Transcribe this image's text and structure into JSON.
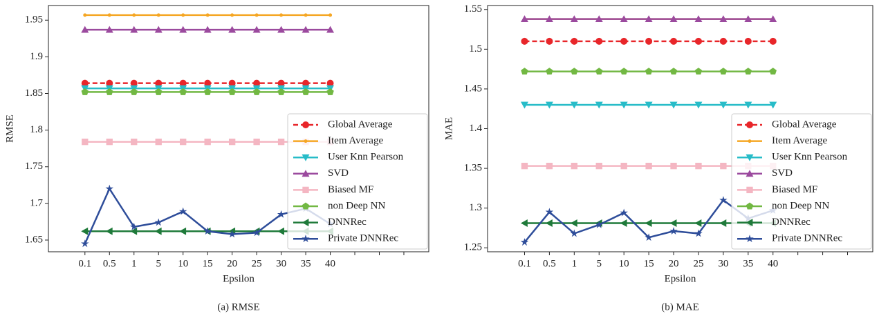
{
  "chart_data": [
    {
      "type": "line",
      "caption": "(a)  RMSE",
      "x_label": "Epsilon",
      "y_label": "RMSE",
      "categories": [
        "0.1",
        "0.5",
        "1",
        "5",
        "10",
        "15",
        "20",
        "25",
        "30",
        "35",
        "40",
        null,
        null,
        null
      ],
      "ylim": [
        1.634,
        1.97
      ],
      "yticks": [
        1.65,
        1.7,
        1.75,
        1.8,
        1.85,
        1.9,
        1.95
      ],
      "legend": "lower right",
      "series": [
        {
          "name": "Global Average",
          "color": "#e8262a",
          "marker": "circle",
          "dashed": true,
          "values": [
            1.864,
            1.864,
            1.864,
            1.864,
            1.864,
            1.864,
            1.864,
            1.864,
            1.864,
            1.864,
            1.864,
            null,
            null,
            null
          ]
        },
        {
          "name": "Item Average",
          "color": "#f5a623",
          "marker": "dot",
          "values": [
            1.957,
            1.957,
            1.957,
            1.957,
            1.957,
            1.957,
            1.957,
            1.957,
            1.957,
            1.957,
            1.957,
            null,
            null,
            null
          ]
        },
        {
          "name": "User Knn Pearson",
          "color": "#27bcc8",
          "marker": "down",
          "values": [
            1.857,
            1.857,
            1.857,
            1.857,
            1.857,
            1.857,
            1.857,
            1.857,
            1.857,
            1.857,
            1.857,
            null,
            null,
            null
          ]
        },
        {
          "name": "SVD",
          "color": "#9b4a9e",
          "marker": "up",
          "values": [
            1.937,
            1.937,
            1.937,
            1.937,
            1.937,
            1.937,
            1.937,
            1.937,
            1.937,
            1.937,
            1.937,
            null,
            null,
            null
          ]
        },
        {
          "name": "Biased MF",
          "color": "#f4b6c2",
          "marker": "square",
          "values": [
            1.784,
            1.784,
            1.784,
            1.784,
            1.784,
            1.784,
            1.784,
            1.784,
            1.784,
            1.784,
            1.784,
            null,
            null,
            null
          ]
        },
        {
          "name": "non Deep NN",
          "color": "#72b843",
          "marker": "pentagon",
          "values": [
            1.852,
            1.852,
            1.852,
            1.852,
            1.852,
            1.852,
            1.852,
            1.852,
            1.852,
            1.852,
            1.852,
            null,
            null,
            null
          ]
        },
        {
          "name": "DNNRec",
          "color": "#1f7a3a",
          "marker": "left",
          "values": [
            1.662,
            1.662,
            1.662,
            1.662,
            1.662,
            1.662,
            1.662,
            1.662,
            1.662,
            1.662,
            1.662,
            null,
            null,
            null
          ]
        },
        {
          "name": "Private DNNRec",
          "color": "#2e4d9a",
          "marker": "star",
          "values": [
            1.645,
            1.72,
            1.668,
            1.674,
            1.689,
            1.662,
            1.658,
            1.66,
            1.685,
            1.693,
            1.672,
            null,
            null,
            null
          ]
        }
      ]
    },
    {
      "type": "line",
      "caption": "(b)  MAE",
      "x_label": "Epsilon",
      "y_label": "MAE",
      "categories": [
        "0.1",
        "0.5",
        "1",
        "5",
        "10",
        "15",
        "20",
        "25",
        "30",
        "35",
        "40",
        null,
        null,
        null
      ],
      "ylim": [
        1.245,
        1.555
      ],
      "yticks": [
        1.25,
        1.3,
        1.35,
        1.4,
        1.45,
        1.5,
        1.55
      ],
      "legend": "lower right",
      "series": [
        {
          "name": "Global Average",
          "color": "#e8262a",
          "marker": "circle",
          "dashed": true,
          "values": [
            1.51,
            1.51,
            1.51,
            1.51,
            1.51,
            1.51,
            1.51,
            1.51,
            1.51,
            1.51,
            1.51,
            null,
            null,
            null
          ]
        },
        {
          "name": "Item Average",
          "color": "#f5a623",
          "marker": "dot",
          "values": [
            1.538,
            1.538,
            1.538,
            1.538,
            1.538,
            1.538,
            1.538,
            1.538,
            1.538,
            1.538,
            1.538,
            null,
            null,
            null
          ]
        },
        {
          "name": "User Knn Pearson",
          "color": "#27bcc8",
          "marker": "down",
          "values": [
            1.43,
            1.43,
            1.43,
            1.43,
            1.43,
            1.43,
            1.43,
            1.43,
            1.43,
            1.43,
            1.43,
            null,
            null,
            null
          ]
        },
        {
          "name": "SVD",
          "color": "#9b4a9e",
          "marker": "up",
          "values": [
            1.538,
            1.538,
            1.538,
            1.538,
            1.538,
            1.538,
            1.538,
            1.538,
            1.538,
            1.538,
            1.538,
            null,
            null,
            null
          ]
        },
        {
          "name": "Biased MF",
          "color": "#f4b6c2",
          "marker": "square",
          "values": [
            1.353,
            1.353,
            1.353,
            1.353,
            1.353,
            1.353,
            1.353,
            1.353,
            1.353,
            1.353,
            1.353,
            null,
            null,
            null
          ]
        },
        {
          "name": "non Deep NN",
          "color": "#72b843",
          "marker": "pentagon",
          "values": [
            1.472,
            1.472,
            1.472,
            1.472,
            1.472,
            1.472,
            1.472,
            1.472,
            1.472,
            1.472,
            1.472,
            null,
            null,
            null
          ]
        },
        {
          "name": "DNNRec",
          "color": "#1f7a3a",
          "marker": "left",
          "values": [
            1.281,
            1.281,
            1.281,
            1.281,
            1.281,
            1.281,
            1.281,
            1.281,
            1.281,
            1.281,
            1.281,
            null,
            null,
            null
          ]
        },
        {
          "name": "Private DNNRec",
          "color": "#2e4d9a",
          "marker": "star",
          "values": [
            1.257,
            1.295,
            1.268,
            1.279,
            1.294,
            1.263,
            1.271,
            1.268,
            1.31,
            1.287,
            1.297,
            null,
            null,
            null
          ]
        }
      ]
    }
  ]
}
